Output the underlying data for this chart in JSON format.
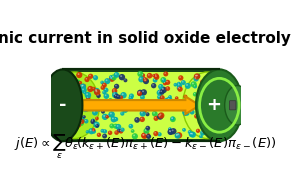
{
  "title": "Ionic current in solid oxide electrolyte",
  "title_fontsize": 11,
  "formula": "$j(E) \\propto \\sum_{\\varepsilon} \\theta_{\\varepsilon}\\!\\left(k_{\\varepsilon+}(E)\\pi_{\\varepsilon+}(E) - k_{\\varepsilon-}(E)\\pi_{\\varepsilon-}(E)\\right)$",
  "formula_fontsize": 9.5,
  "bg_color": "#ffffff",
  "battery_body_color": "#1a4a1a",
  "battery_body_color2": "#0d2e0d",
  "electrolyte_bg": "#ccff44",
  "electrolyte_bg2": "#aaee22",
  "arrow_color": "#ffaa00",
  "arrow_edge_color": "#cc8800",
  "atom_colors": {
    "teal": "#00aaaa",
    "red": "#cc3300",
    "dark_blue": "#1a3366",
    "green": "#22cc44"
  },
  "minus_label": "-",
  "plus_label": "+"
}
